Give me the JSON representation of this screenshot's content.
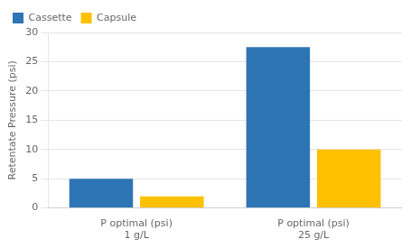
{
  "chart_data": {
    "type": "bar",
    "categories": [
      "P optimal (psi)\n1 g/L",
      "P optimal (psi)\n25 g/L"
    ],
    "series": [
      {
        "name": "Cassette",
        "color": "#2E75B6",
        "values": [
          5,
          27.5
        ]
      },
      {
        "name": "Capsule",
        "color": "#FFC000",
        "values": [
          2,
          10
        ]
      }
    ],
    "ylabel": "Retentate Pressure (psi)",
    "ylim": [
      0,
      30
    ],
    "yticks": [
      0,
      5,
      10,
      15,
      20,
      25,
      30
    ],
    "grid": true,
    "legend": "upper left"
  }
}
